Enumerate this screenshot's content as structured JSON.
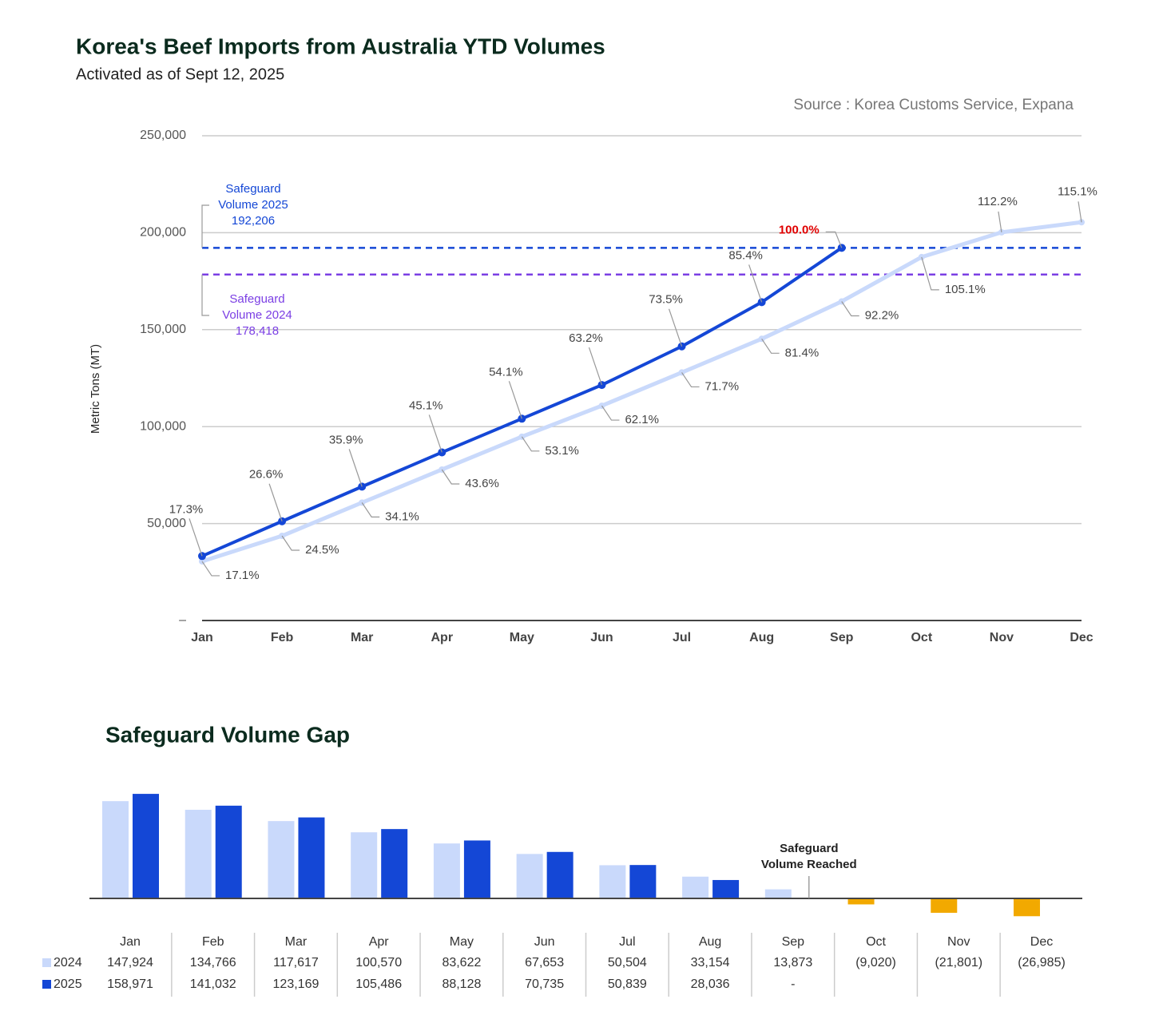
{
  "chart_data": [
    {
      "type": "line",
      "title": "Korea's Beef Imports from Australia YTD Volumes",
      "subtitle": "Activated as of Sept 12, 2025",
      "source": "Source : Korea Customs Service, Expana",
      "y_label": "Metric Tons (MT)",
      "categories": [
        "Jan",
        "Feb",
        "Mar",
        "Apr",
        "May",
        "Jun",
        "Jul",
        "Aug",
        "Sep",
        "Oct",
        "Nov",
        "Dec"
      ],
      "ylim": [
        0,
        250000
      ],
      "yticks": [
        {
          "value": 0,
          "label": "–"
        },
        {
          "value": 50000,
          "label": "50,000"
        },
        {
          "value": 100000,
          "label": "100,000"
        },
        {
          "value": 150000,
          "label": "150,000"
        },
        {
          "value": 200000,
          "label": "200,000"
        },
        {
          "value": 250000,
          "label": "250,000"
        }
      ],
      "grid": true,
      "series": [
        {
          "color": "#c9d9fb",
          "values": [
            30494,
            43652,
            60801,
            77848,
            94796,
            110765,
            127914,
            145264,
            164545,
            187438,
            200219,
            205403
          ],
          "point_labels": [
            "17.1%",
            "24.5%",
            "34.1%",
            "43.6%",
            "53.1%",
            "62.1%",
            "71.7%",
            "81.4%",
            "92.2%",
            "105.1%",
            "112.2%",
            "115.1%"
          ]
        },
        {
          "color": "#1447d6",
          "values": [
            33235,
            51174,
            69037,
            86720,
            104078,
            121471,
            141367,
            164170,
            192206,
            null,
            null,
            null
          ],
          "point_labels": [
            "17.3%",
            "26.6%",
            "35.9%",
            "45.1%",
            "54.1%",
            "63.2%",
            "73.5%",
            "85.4%",
            "100.0%",
            null,
            null,
            null
          ],
          "highlight": {
            "category": "Sep",
            "color": "#e00000"
          }
        }
      ],
      "ref_lines": [
        {
          "text": [
            "Safeguard",
            "Volume 2025"
          ],
          "value": 192206,
          "value_label": "192,206",
          "color": "#1447d6"
        },
        {
          "text": [
            "Safeguard",
            "Volume 2024"
          ],
          "value": 178418,
          "value_label": "178,418",
          "color": "#7b3fe4"
        }
      ]
    },
    {
      "type": "bar",
      "title": "Safeguard Volume Gap",
      "categories": [
        "Jan",
        "Feb",
        "Mar",
        "Apr",
        "May",
        "Jun",
        "Jul",
        "Aug",
        "Sep",
        "Oct",
        "Nov",
        "Dec"
      ],
      "ylim": [
        -40000,
        170000
      ],
      "negative_color": "#f2a900",
      "series": [
        {
          "name": "2024",
          "color": "#c9d9fb",
          "values": [
            147924,
            134766,
            117617,
            100570,
            83622,
            67653,
            50504,
            33154,
            13873,
            -9020,
            -21801,
            -26985
          ],
          "value_labels": [
            "147,924",
            "134,766",
            "117,617",
            "100,570",
            "83,622",
            "67,653",
            "50,504",
            "33,154",
            "13,873",
            "(9,020)",
            "(21,801)",
            "(26,985)"
          ]
        },
        {
          "name": "2025",
          "color": "#1447d6",
          "values": [
            158971,
            141032,
            123169,
            105486,
            88128,
            70735,
            50839,
            28036,
            null,
            null,
            null,
            null
          ],
          "value_labels": [
            "158,971",
            "141,032",
            "123,169",
            "105,486",
            "88,128",
            "70,735",
            "50,839",
            "28,036",
            "-",
            null,
            null,
            null
          ]
        }
      ],
      "annotation": {
        "text": [
          "Safeguard",
          "Volume Reached"
        ],
        "category": "Sep"
      }
    }
  ]
}
